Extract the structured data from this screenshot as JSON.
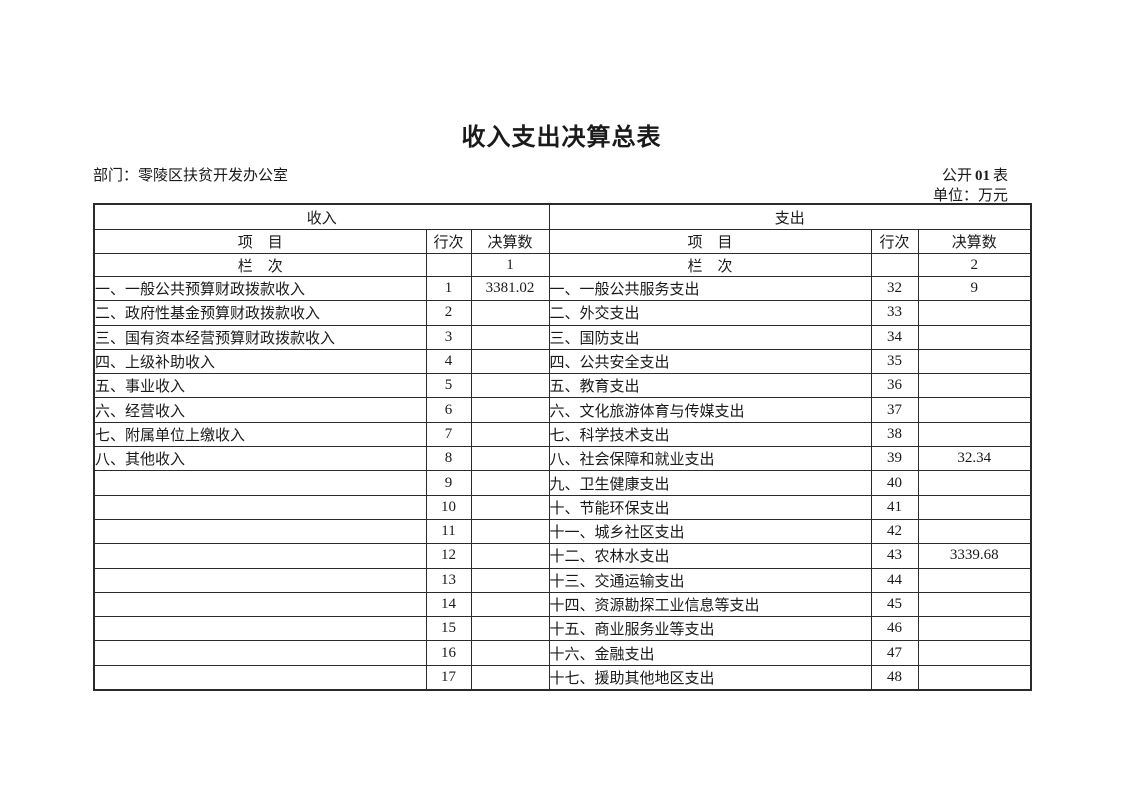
{
  "title": "收入支出决算总表",
  "meta": {
    "department_label": "部门：",
    "department_value": "零陵区扶贫开发办公室",
    "code_prefix": "公开",
    "code_number": "01",
    "code_suffix": "表",
    "unit_label": "单位：",
    "unit_value": "万元"
  },
  "table": {
    "income": {
      "section_title": "收入",
      "col_item": "项　目",
      "col_line": "行次",
      "col_amount": "决算数",
      "lanci_label": "栏　次",
      "lanci_line": "",
      "lanci_value": "1",
      "rows": [
        {
          "item": "一、一般公共预算财政拨款收入",
          "line": "1",
          "amount": "3381.02"
        },
        {
          "item": "二、政府性基金预算财政拨款收入",
          "line": "2",
          "amount": ""
        },
        {
          "item": "三、国有资本经营预算财政拨款收入",
          "line": "3",
          "amount": ""
        },
        {
          "item": "四、上级补助收入",
          "line": "4",
          "amount": ""
        },
        {
          "item": "五、事业收入",
          "line": "5",
          "amount": ""
        },
        {
          "item": "六、经营收入",
          "line": "6",
          "amount": ""
        },
        {
          "item": "七、附属单位上缴收入",
          "line": "7",
          "amount": ""
        },
        {
          "item": "八、其他收入",
          "line": "8",
          "amount": ""
        },
        {
          "item": "",
          "line": "9",
          "amount": ""
        },
        {
          "item": "",
          "line": "10",
          "amount": ""
        },
        {
          "item": "",
          "line": "11",
          "amount": ""
        },
        {
          "item": "",
          "line": "12",
          "amount": ""
        },
        {
          "item": "",
          "line": "13",
          "amount": ""
        },
        {
          "item": "",
          "line": "14",
          "amount": ""
        },
        {
          "item": "",
          "line": "15",
          "amount": ""
        },
        {
          "item": "",
          "line": "16",
          "amount": ""
        },
        {
          "item": "",
          "line": "17",
          "amount": ""
        }
      ]
    },
    "expense": {
      "section_title": "支出",
      "col_item": "项　目",
      "col_line": "行次",
      "col_amount": "决算数",
      "lanci_label": "栏　次",
      "lanci_line": "",
      "lanci_value": "2",
      "rows": [
        {
          "item": "一、一般公共服务支出",
          "line": "32",
          "amount": "9"
        },
        {
          "item": "二、外交支出",
          "line": "33",
          "amount": ""
        },
        {
          "item": "三、国防支出",
          "line": "34",
          "amount": ""
        },
        {
          "item": "四、公共安全支出",
          "line": "35",
          "amount": ""
        },
        {
          "item": "五、教育支出",
          "line": "36",
          "amount": ""
        },
        {
          "item": "六、文化旅游体育与传媒支出",
          "line": "37",
          "amount": ""
        },
        {
          "item": "七、科学技术支出",
          "line": "38",
          "amount": ""
        },
        {
          "item": "八、社会保障和就业支出",
          "line": "39",
          "amount": "32.34"
        },
        {
          "item": "九、卫生健康支出",
          "line": "40",
          "amount": ""
        },
        {
          "item": "十、节能环保支出",
          "line": "41",
          "amount": ""
        },
        {
          "item": "十一、城乡社区支出",
          "line": "42",
          "amount": ""
        },
        {
          "item": "十二、农林水支出",
          "line": "43",
          "amount": "3339.68"
        },
        {
          "item": "十三、交通运输支出",
          "line": "44",
          "amount": ""
        },
        {
          "item": "十四、资源勘探工业信息等支出",
          "line": "45",
          "amount": ""
        },
        {
          "item": "十五、商业服务业等支出",
          "line": "46",
          "amount": ""
        },
        {
          "item": "十六、金融支出",
          "line": "47",
          "amount": ""
        },
        {
          "item": "十七、援助其他地区支出",
          "line": "48",
          "amount": ""
        }
      ]
    }
  },
  "colors": {
    "text": "#1a1a1a",
    "border": "#2b2b2b",
    "bg": "#ffffff"
  }
}
